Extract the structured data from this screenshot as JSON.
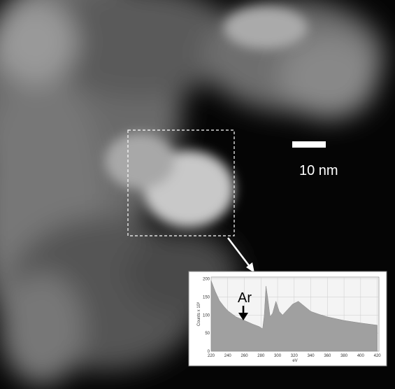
{
  "scale_bar": {
    "label": "10 nm"
  },
  "chart_data": {
    "type": "area",
    "annotation": "Ar",
    "xlabel": "eV",
    "ylabel": "Counts x 10³",
    "x": [
      220,
      225,
      230,
      235,
      240,
      250,
      260,
      270,
      278,
      282,
      284,
      286,
      288,
      291,
      294,
      298,
      302,
      306,
      312,
      318,
      325,
      332,
      340,
      350,
      360,
      380,
      400,
      420
    ],
    "values": [
      195,
      165,
      140,
      125,
      112,
      95,
      85,
      75,
      68,
      62,
      100,
      180,
      150,
      95,
      105,
      138,
      110,
      100,
      115,
      130,
      138,
      125,
      110,
      102,
      95,
      85,
      78,
      72
    ],
    "color": "#a0a0a0",
    "xlim": [
      220,
      422
    ],
    "ylim": [
      0,
      205
    ],
    "xticks": [
      220,
      240,
      260,
      280,
      300,
      320,
      340,
      360,
      380,
      400,
      420
    ],
    "yticks": [
      0,
      50,
      100,
      150,
      200
    ],
    "grid": true
  }
}
